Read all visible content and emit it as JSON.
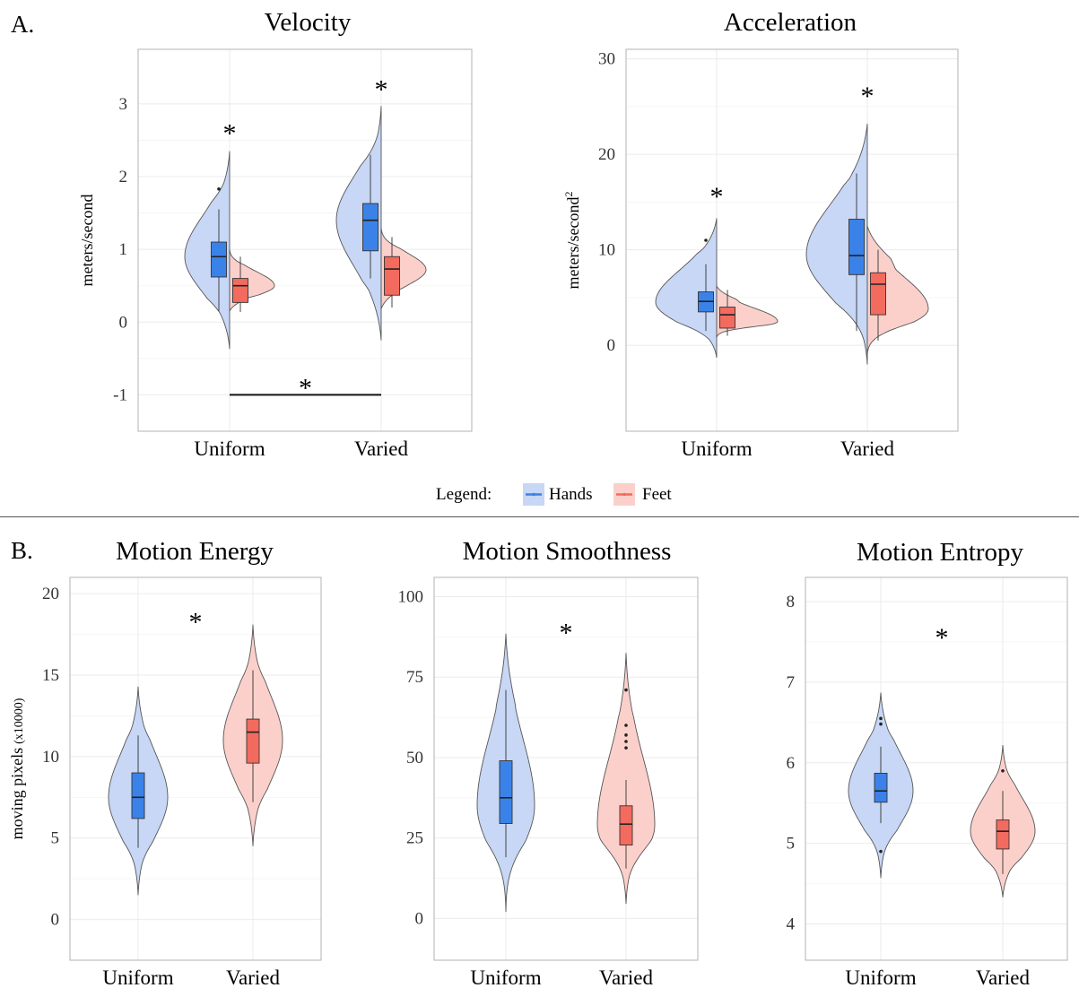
{
  "panels": {
    "a_label": "A.",
    "b_label": "B."
  },
  "legend": {
    "title": "Legend:",
    "items": [
      {
        "label": "Hands",
        "color": "#3b82e8",
        "fill": "#c7d7f5"
      },
      {
        "label": "Feet",
        "color": "#f26b5e",
        "fill": "#fbd0cb"
      }
    ]
  },
  "colors": {
    "hands_box": "#3b82e8",
    "hands_violin": "#c7d7f5",
    "feet_box": "#f26b5e",
    "feet_violin": "#fbd0cb",
    "grid": "#ebebeb",
    "panel_border": "#b3b3b3"
  },
  "chart_data": [
    {
      "id": "velocity",
      "type": "split-violin",
      "title": "Velocity",
      "ylabel": "meters/second",
      "ylim": [
        -1.5,
        3.75
      ],
      "yticks": [
        -1,
        0,
        1,
        2,
        3
      ],
      "categories": [
        "Uniform",
        "Varied"
      ],
      "series": [
        {
          "name": "Hands",
          "side": "left",
          "groups": [
            {
              "category": "Uniform",
              "violin_range": [
                -0.37,
                2.35
              ],
              "density_mode": 0.9,
              "q1": 0.62,
              "median": 0.9,
              "q3": 1.1,
              "whisker_low": 0.15,
              "whisker_high": 1.55,
              "outliers": [
                1.83
              ]
            },
            {
              "category": "Varied",
              "violin_range": [
                -0.25,
                2.97
              ],
              "density_mode": 1.4,
              "q1": 0.98,
              "median": 1.4,
              "q3": 1.63,
              "whisker_low": 0.6,
              "whisker_high": 2.3,
              "outliers": []
            }
          ]
        },
        {
          "name": "Feet",
          "side": "right",
          "groups": [
            {
              "category": "Uniform",
              "violin_range": [
                0.15,
                1.0
              ],
              "density_mode": 0.5,
              "q1": 0.27,
              "median": 0.5,
              "q3": 0.6,
              "whisker_low": 0.14,
              "whisker_high": 0.9,
              "outliers": []
            },
            {
              "category": "Varied",
              "violin_range": [
                0.18,
                1.3
              ],
              "density_mode": 0.72,
              "q1": 0.37,
              "median": 0.73,
              "q3": 0.9,
              "whisker_low": 0.2,
              "whisker_high": 1.17,
              "outliers": []
            }
          ]
        }
      ],
      "annotations": [
        {
          "text": "*",
          "category": "Uniform",
          "y": 2.65
        },
        {
          "text": "*",
          "category": "Varied",
          "y": 3.25
        },
        {
          "text": "*",
          "between": [
            "Uniform",
            "Varied"
          ],
          "y": -0.85,
          "bracket_y": -1.0
        }
      ]
    },
    {
      "id": "acceleration",
      "type": "split-violin",
      "title": "Acceleration",
      "ylabel": "meters/second",
      "ylabel_superscript": "2",
      "ylim": [
        -9,
        31
      ],
      "yticks": [
        0,
        10,
        20,
        30
      ],
      "categories": [
        "Uniform",
        "Varied"
      ],
      "series": [
        {
          "name": "Hands",
          "side": "left",
          "groups": [
            {
              "category": "Uniform",
              "violin_range": [
                -1.3,
                13.3
              ],
              "density_mode": 4.5,
              "q1": 3.5,
              "median": 4.6,
              "q3": 5.6,
              "whisker_low": 1.5,
              "whisker_high": 8.5,
              "outliers": [
                11.0
              ]
            },
            {
              "category": "Varied",
              "violin_range": [
                -2.0,
                23.2
              ],
              "density_mode": 9.5,
              "q1": 7.4,
              "median": 9.4,
              "q3": 13.2,
              "whisker_low": 1.5,
              "whisker_high": 18.0,
              "outliers": []
            }
          ]
        },
        {
          "name": "Feet",
          "side": "right",
          "groups": [
            {
              "category": "Uniform",
              "violin_range": [
                0.8,
                6.2
              ],
              "density_mode": 2.5,
              "q1": 1.8,
              "median": 3.2,
              "q3": 4.0,
              "whisker_low": 1.0,
              "whisker_high": 5.8,
              "outliers": []
            },
            {
              "category": "Varied",
              "violin_range": [
                -1.0,
                12.5
              ],
              "density_mode": 3.8,
              "q1": 3.2,
              "median": 6.4,
              "q3": 7.6,
              "whisker_low": 0.5,
              "whisker_high": 10.0,
              "outliers": []
            }
          ]
        }
      ],
      "annotations": [
        {
          "text": "*",
          "category": "Uniform",
          "y": 16.0
        },
        {
          "text": "*",
          "category": "Varied",
          "y": 26.5
        }
      ]
    },
    {
      "id": "motion-energy",
      "type": "violin",
      "title": "Motion Energy",
      "ylabel": "moving pixels",
      "ylabel_small": "(x10000)",
      "ylim": [
        -2.5,
        21
      ],
      "yticks": [
        0,
        5,
        10,
        15,
        20
      ],
      "categories": [
        "Uniform",
        "Varied"
      ],
      "groups": [
        {
          "category": "Uniform",
          "series": "Hands",
          "violin_range": [
            1.5,
            14.3
          ],
          "density_mode": 7.5,
          "q1": 6.2,
          "median": 7.5,
          "q3": 9.0,
          "whisker_low": 4.4,
          "whisker_high": 11.3,
          "outliers": []
        },
        {
          "category": "Varied",
          "series": "Feet",
          "violin_range": [
            4.5,
            18.1
          ],
          "density_mode": 11.0,
          "q1": 9.6,
          "median": 11.5,
          "q3": 12.3,
          "whisker_low": 7.2,
          "whisker_high": 15.3,
          "outliers": []
        }
      ],
      "annotations": [
        {
          "text": "*",
          "y": 18.5
        }
      ]
    },
    {
      "id": "motion-smoothness",
      "type": "violin",
      "title": "Motion Smoothness",
      "ylabel": "",
      "ylim": [
        -13,
        106
      ],
      "yticks": [
        0,
        25,
        50,
        75,
        100
      ],
      "categories": [
        "Uniform",
        "Varied"
      ],
      "groups": [
        {
          "category": "Uniform",
          "series": "Hands",
          "violin_range": [
            2,
            88.5
          ],
          "density_mode": 35,
          "q1": 29.5,
          "median": 37.5,
          "q3": 49,
          "whisker_low": 19,
          "whisker_high": 71,
          "outliers": []
        },
        {
          "category": "Varied",
          "series": "Feet",
          "violin_range": [
            4.5,
            82.5
          ],
          "density_mode": 29,
          "q1": 22.8,
          "median": 29.3,
          "q3": 35,
          "whisker_low": 15.5,
          "whisker_high": 43,
          "outliers": [
            53,
            55,
            57,
            60,
            71
          ]
        }
      ],
      "annotations": [
        {
          "text": "*",
          "y": 90
        }
      ]
    },
    {
      "id": "motion-entropy",
      "type": "violin",
      "title": "Motion Entropy",
      "ylabel": "",
      "ylim": [
        3.55,
        8.3
      ],
      "yticks": [
        4,
        5,
        6,
        7,
        8
      ],
      "categories": [
        "Uniform",
        "Varied"
      ],
      "groups": [
        {
          "category": "Uniform",
          "series": "Hands",
          "violin_range": [
            4.57,
            6.87
          ],
          "density_mode": 5.65,
          "q1": 5.51,
          "median": 5.65,
          "q3": 5.87,
          "whisker_low": 5.25,
          "whisker_high": 6.2,
          "outliers": [
            4.9,
            6.48,
            6.55
          ]
        },
        {
          "category": "Varied",
          "series": "Feet",
          "violin_range": [
            4.33,
            6.22
          ],
          "density_mode": 5.15,
          "q1": 4.93,
          "median": 5.15,
          "q3": 5.29,
          "whisker_low": 4.62,
          "whisker_high": 5.65,
          "outliers": [
            5.9
          ]
        }
      ],
      "annotations": [
        {
          "text": "*",
          "y": 7.6
        }
      ]
    }
  ]
}
